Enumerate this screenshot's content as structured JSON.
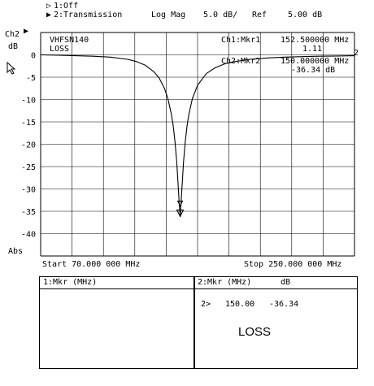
{
  "header": {
    "trace1": "1:Off",
    "trace2": "2:Transmission",
    "format": "Log Mag",
    "scale": "5.0 dB/",
    "ref_label": "Ref",
    "ref_value": "5.00 dB",
    "channel": "Ch2",
    "unit": "dB"
  },
  "trace_labels": {
    "line1": "VHFSN140",
    "line2": "LOSS"
  },
  "markers": {
    "m1_label": "Ch1:Mkr1",
    "m1_freq": "152.500000 MHz",
    "m1_value": "1.11",
    "m2_label": "Ch2:Mkr2",
    "m2_freq": "150.000000 MHz",
    "m2_value": "-36.34 dB"
  },
  "y_ticks": [
    "0",
    "-5",
    "-10",
    "-15",
    "-20",
    "-25",
    "-30",
    "-35",
    "-40"
  ],
  "abs_label": "Abs",
  "ref_marker": "2",
  "footer": {
    "start": "Start 70.000 000 MHz",
    "stop": "Stop 250.000 000 MHz"
  },
  "panel_left": {
    "title": "1:Mkr (MHz)"
  },
  "panel_right": {
    "title": "2:Mkr (MHz)",
    "title_unit": "dB",
    "row_index": "2>",
    "row_freq": "150.00",
    "row_value": "-36.34",
    "caption": "LOSS"
  },
  "chart_data": {
    "type": "line",
    "title": "",
    "xlabel": "",
    "ylabel": "dB",
    "xlim": [
      70,
      250
    ],
    "ylim": [
      -45,
      5
    ],
    "grid": true,
    "series": [
      {
        "x": [
          70,
          80,
          90,
          100,
          110,
          120,
          125,
          130,
          135,
          138,
          141,
          143,
          145,
          146,
          147,
          148,
          149,
          149.5,
          150,
          150.5,
          151,
          152,
          153,
          154,
          155,
          157,
          160,
          165,
          170,
          175,
          180,
          190,
          200,
          210,
          220,
          230,
          240,
          250
        ],
        "values": [
          0,
          -0.1,
          -0.2,
          -0.3,
          -0.5,
          -1.0,
          -1.5,
          -2.3,
          -3.8,
          -5.2,
          -7.5,
          -9.8,
          -13.3,
          -15.8,
          -19.2,
          -23.8,
          -30.0,
          -33.5,
          -36.3,
          -33.5,
          -30.0,
          -23.8,
          -19.2,
          -15.8,
          -13.3,
          -9.8,
          -6.8,
          -4.2,
          -2.9,
          -2.1,
          -1.6,
          -1.0,
          -0.7,
          -0.5,
          -0.4,
          -0.3,
          -0.25,
          -0.2
        ]
      }
    ]
  }
}
